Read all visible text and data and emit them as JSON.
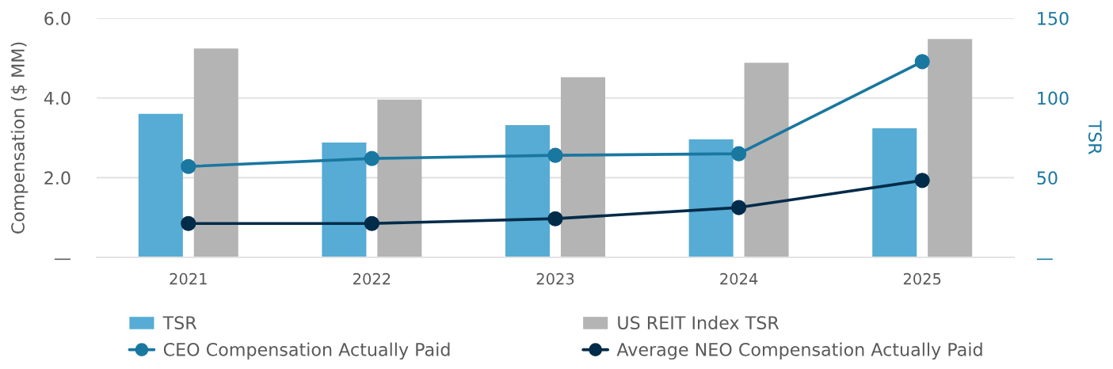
{
  "chart_data": {
    "type": "bar",
    "categories": [
      "2021",
      "2022",
      "2023",
      "2024",
      "2025"
    ],
    "series": [
      {
        "name": "TSR",
        "axis": "y2",
        "color": "#56acd4",
        "values": [
          90,
          72,
          83,
          74,
          81
        ]
      },
      {
        "name": "US REIT Index TSR",
        "axis": "y2",
        "color": "#b4b4b4",
        "values": [
          131,
          99,
          113,
          122,
          137
        ]
      },
      {
        "name": "CEO Compensation Actually Paid",
        "type": "line",
        "color": "#1a77a0",
        "marker": "circle",
        "values": [
          2.28,
          2.48,
          2.56,
          2.6,
          4.91
        ]
      },
      {
        "name": "Average NEO Compensation Actually Paid",
        "type": "line",
        "color": "#002b49",
        "marker": "circle",
        "values": [
          0.85,
          0.85,
          0.97,
          1.25,
          1.93
        ]
      }
    ],
    "ylabel": "Compensation ($ MM)",
    "y2label": "TSR",
    "ylim": [
      0,
      6
    ],
    "yticks": [
      {
        "value": 0,
        "label": "—"
      },
      {
        "value": 2,
        "label": "2.0"
      },
      {
        "value": 4,
        "label": "4.0"
      },
      {
        "value": 6,
        "label": "6.0"
      }
    ],
    "y2lim": [
      0,
      150
    ],
    "y2ticks": [
      {
        "value": 0,
        "label": "—"
      },
      50,
      100,
      150
    ],
    "grid": "y",
    "legend": "bottom"
  }
}
